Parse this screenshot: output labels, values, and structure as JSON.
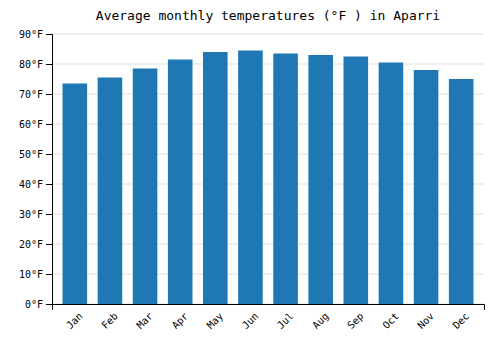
{
  "chart_data": {
    "type": "bar",
    "title": "Average monthly temperatures (°F ) in Aparri",
    "categories": [
      "Jan",
      "Feb",
      "Mar",
      "Apr",
      "May",
      "Jun",
      "Jul",
      "Aug",
      "Sep",
      "Oct",
      "Nov",
      "Dec"
    ],
    "values": [
      73.5,
      75.5,
      78.5,
      81.5,
      84.0,
      84.5,
      83.5,
      83.0,
      82.5,
      80.5,
      78.0,
      75.0
    ],
    "ylim": [
      0,
      90
    ],
    "yticks": [
      {
        "value": 0,
        "label": "0°F"
      },
      {
        "value": 10,
        "label": "10°F"
      },
      {
        "value": 20,
        "label": "20°F"
      },
      {
        "value": 30,
        "label": "30°F"
      },
      {
        "value": 40,
        "label": "40°F"
      },
      {
        "value": 50,
        "label": "50°F"
      },
      {
        "value": 60,
        "label": "60°F"
      },
      {
        "value": 70,
        "label": "70°F"
      },
      {
        "value": 80,
        "label": "80°F"
      },
      {
        "value": 90,
        "label": "90°F"
      }
    ],
    "grid": true
  }
}
